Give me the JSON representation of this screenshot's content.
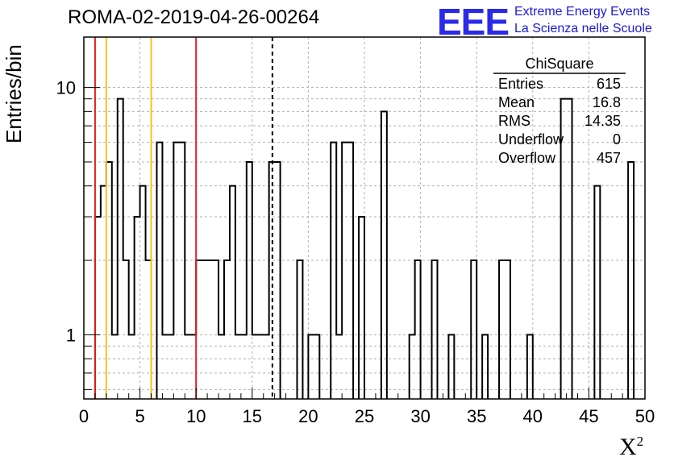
{
  "page": {
    "title": "ROMA-02-2019-04-26-00264",
    "logo_letters": "EEE",
    "logo_line1": "Extreme Energy Events",
    "logo_line2": "La Scienza nelle Scuole",
    "logo_color": "#2a2ae8"
  },
  "chart_data": {
    "type": "bar",
    "style": "step-histogram",
    "xlabel": "X",
    "xlabel_superscript": "2",
    "ylabel": "Entries/bin",
    "xlim": [
      0,
      50
    ],
    "ylim": [
      0.55,
      16
    ],
    "y_scale": "log",
    "grid": true,
    "bin_width": 0.5,
    "x_ticks": [
      0,
      5,
      10,
      15,
      20,
      25,
      30,
      35,
      40,
      45,
      50
    ],
    "y_ticks": [
      1,
      10
    ],
    "bins": [
      [
        1.0,
        3
      ],
      [
        1.5,
        4
      ],
      [
        2.0,
        5
      ],
      [
        2.5,
        1
      ],
      [
        3.0,
        9
      ],
      [
        3.5,
        2
      ],
      [
        4.0,
        1
      ],
      [
        4.5,
        3
      ],
      [
        5.0,
        4
      ],
      [
        5.5,
        2
      ],
      [
        6.5,
        6
      ],
      [
        7.0,
        1
      ],
      [
        7.5,
        1
      ],
      [
        8.0,
        6
      ],
      [
        8.5,
        6
      ],
      [
        9.0,
        1
      ],
      [
        9.5,
        1
      ],
      [
        10.0,
        2
      ],
      [
        10.5,
        2
      ],
      [
        11.0,
        2
      ],
      [
        11.5,
        2
      ],
      [
        12.0,
        1
      ],
      [
        12.5,
        2
      ],
      [
        13.0,
        4
      ],
      [
        13.5,
        1
      ],
      [
        14.0,
        1
      ],
      [
        14.5,
        5
      ],
      [
        15.0,
        1
      ],
      [
        15.5,
        1
      ],
      [
        16.0,
        1
      ],
      [
        16.5,
        5
      ],
      [
        17.0,
        5
      ],
      [
        19.0,
        2
      ],
      [
        20.0,
        1
      ],
      [
        20.5,
        1
      ],
      [
        22.0,
        6
      ],
      [
        22.5,
        1
      ],
      [
        23.0,
        6
      ],
      [
        23.5,
        6
      ],
      [
        24.5,
        3
      ],
      [
        26.5,
        8
      ],
      [
        29.0,
        1
      ],
      [
        29.5,
        2
      ],
      [
        31.0,
        2
      ],
      [
        32.5,
        1
      ],
      [
        34.5,
        2
      ],
      [
        35.5,
        1
      ],
      [
        37.0,
        2
      ],
      [
        37.5,
        2
      ],
      [
        39.5,
        1
      ],
      [
        42.5,
        9
      ],
      [
        43.0,
        9
      ],
      [
        45.5,
        4
      ],
      [
        48.5,
        5
      ]
    ],
    "vertical_lines": [
      {
        "x": 1,
        "color": "#e02020",
        "style": "solid"
      },
      {
        "x": 2,
        "color": "#f5c518",
        "style": "solid"
      },
      {
        "x": 6,
        "color": "#f5c518",
        "style": "solid"
      },
      {
        "x": 10,
        "color": "#e02020",
        "style": "solid"
      },
      {
        "x": 16.8,
        "color": "#000000",
        "style": "dashed"
      }
    ],
    "stats_box": {
      "name": "ChiSquare",
      "rows": [
        {
          "label": "Entries",
          "value": "615"
        },
        {
          "label": "Mean",
          "value": "16.8"
        },
        {
          "label": "RMS",
          "value": "14.35"
        },
        {
          "label": "Underflow",
          "value": "0"
        },
        {
          "label": "Overflow",
          "value": "457"
        }
      ]
    }
  }
}
